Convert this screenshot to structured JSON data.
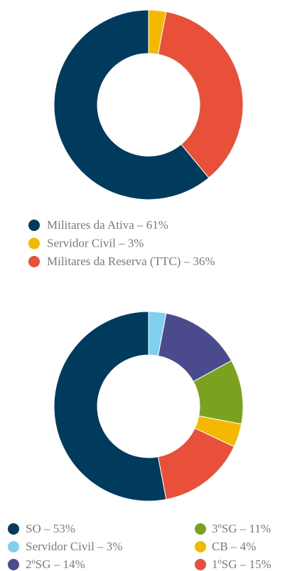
{
  "chart_data": [
    {
      "type": "donut",
      "series": [
        {
          "name": "Militares da Ativa – 61%",
          "color": "#003a5c",
          "values": [
            61
          ]
        },
        {
          "name": "Servidor Civil – 3%",
          "color": "#f5b800",
          "values": [
            3
          ]
        },
        {
          "name": "Militares da Reserva (TTC) – 36%",
          "color": "#e8503a",
          "values": [
            36
          ]
        }
      ]
    },
    {
      "type": "donut",
      "series": [
        {
          "name": "SO – 53%",
          "color": "#003a5c",
          "values": [
            53
          ]
        },
        {
          "name": "Servidor Civil – 3%",
          "color": "#7fd0f0",
          "values": [
            3
          ]
        },
        {
          "name": "2ºSG – 14%",
          "color": "#4b4a8c",
          "values": [
            14
          ]
        },
        {
          "name": "3ºSG – 11%",
          "color": "#7aa21e",
          "values": [
            11
          ]
        },
        {
          "name": "CB – 4%",
          "color": "#f5b800",
          "values": [
            4
          ]
        },
        {
          "name": "1ºSG – 15%",
          "color": "#e8503a",
          "values": [
            15
          ]
        }
      ]
    }
  ]
}
